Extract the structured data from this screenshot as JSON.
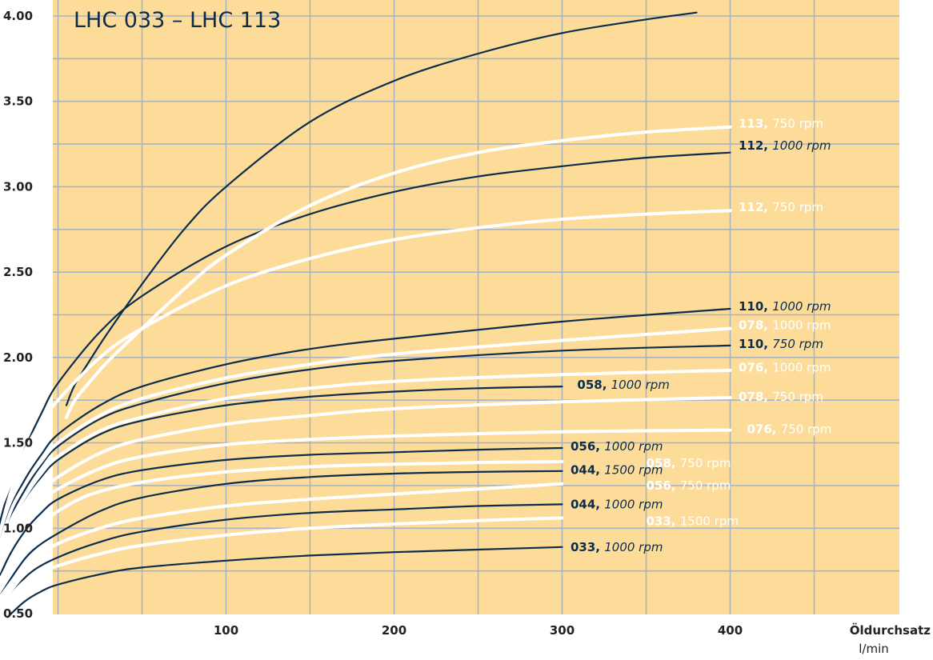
{
  "chart_data": {
    "type": "line",
    "title": "LHC 033 – LHC 113",
    "xlabel": "Öldurchsatz",
    "xunit": "l/min",
    "xlim": [
      -48,
      400
    ],
    "ylim": [
      0.5,
      4.0
    ],
    "xticks": [
      100,
      200,
      300,
      400
    ],
    "yticks": [
      0.5,
      1.0,
      1.5,
      2.0,
      2.5,
      3.0,
      3.5,
      4.0
    ],
    "ytick_labels": [
      "0.50",
      "1.00",
      "1.50",
      "2.00",
      "2.50",
      "3.00",
      "3.50",
      "4.00"
    ],
    "grid": true,
    "background": "#fddc9a",
    "colors": {
      "navy": "#0b2c4a",
      "white": "#ffffff",
      "grid": "#a9b4c0"
    },
    "series": [
      {
        "model": "033",
        "speed": "1000 rpm",
        "color": "navy",
        "x": [
          -30,
          -20,
          -10,
          0,
          25,
          50,
          100,
          150,
          200,
          250,
          300
        ],
        "y": [
          0.48,
          0.57,
          0.63,
          0.67,
          0.73,
          0.77,
          0.81,
          0.84,
          0.86,
          0.875,
          0.89
        ]
      },
      {
        "model": "033",
        "speed": "1500 rpm",
        "color": "white",
        "x": [
          -35,
          -25,
          -15,
          0,
          25,
          50,
          100,
          150,
          200,
          250,
          300
        ],
        "y": [
          0.5,
          0.64,
          0.72,
          0.78,
          0.85,
          0.9,
          0.96,
          1.0,
          1.025,
          1.045,
          1.06
        ]
      },
      {
        "model": "044",
        "speed": "1000 rpm",
        "color": "navy",
        "x": [
          -35,
          -25,
          -15,
          0,
          25,
          50,
          100,
          150,
          200,
          250,
          300
        ],
        "y": [
          0.5,
          0.65,
          0.75,
          0.83,
          0.92,
          0.98,
          1.05,
          1.09,
          1.11,
          1.13,
          1.14
        ]
      },
      {
        "model": "056",
        "speed": "750 rpm",
        "color": "white",
        "x": [
          -38,
          -25,
          -15,
          0,
          25,
          50,
          100,
          150,
          200,
          250,
          300
        ],
        "y": [
          0.55,
          0.72,
          0.82,
          0.91,
          1.0,
          1.06,
          1.13,
          1.17,
          1.2,
          1.23,
          1.26
        ]
      },
      {
        "model": "044",
        "speed": "1500 rpm",
        "color": "navy",
        "x": [
          -38,
          -25,
          -15,
          0,
          25,
          50,
          100,
          150,
          200,
          250,
          300
        ],
        "y": [
          0.55,
          0.75,
          0.87,
          0.97,
          1.1,
          1.18,
          1.26,
          1.3,
          1.32,
          1.33,
          1.335
        ]
      },
      {
        "model": "058",
        "speed": "750 rpm",
        "color": "white",
        "x": [
          -42,
          -30,
          -20,
          -10,
          0,
          20,
          50,
          100,
          150,
          200,
          250,
          300
        ],
        "y": [
          0.55,
          0.78,
          0.92,
          1.02,
          1.1,
          1.2,
          1.27,
          1.33,
          1.36,
          1.375,
          1.385,
          1.39
        ]
      },
      {
        "model": "056",
        "speed": "1000 rpm",
        "color": "navy",
        "x": [
          -42,
          -30,
          -20,
          -10,
          0,
          25,
          50,
          100,
          150,
          200,
          250,
          300
        ],
        "y": [
          0.55,
          0.82,
          0.98,
          1.09,
          1.17,
          1.28,
          1.34,
          1.4,
          1.43,
          1.445,
          1.46,
          1.47
        ]
      },
      {
        "model": "076",
        "speed": "750 rpm",
        "color": "white",
        "x": [
          -45,
          -30,
          -20,
          -10,
          0,
          25,
          50,
          100,
          150,
          200,
          300,
          400
        ],
        "y": [
          0.55,
          0.92,
          1.06,
          1.16,
          1.23,
          1.35,
          1.42,
          1.49,
          1.52,
          1.54,
          1.565,
          1.575
        ]
      },
      {
        "model": "078",
        "speed": "750 rpm",
        "color": "white",
        "x": [
          -45,
          -30,
          -20,
          -10,
          0,
          25,
          50,
          100,
          150,
          200,
          300,
          400
        ],
        "y": [
          0.55,
          0.95,
          1.1,
          1.21,
          1.3,
          1.44,
          1.52,
          1.61,
          1.66,
          1.7,
          1.74,
          1.765
        ]
      },
      {
        "model": "058",
        "speed": "1000 rpm",
        "color": "navy",
        "x": [
          -45,
          -30,
          -20,
          -10,
          0,
          25,
          50,
          100,
          150,
          200,
          250,
          300
        ],
        "y": [
          0.55,
          1.0,
          1.17,
          1.3,
          1.4,
          1.55,
          1.63,
          1.72,
          1.77,
          1.8,
          1.82,
          1.83
        ]
      },
      {
        "model": "076",
        "speed": "1000 rpm",
        "color": "white",
        "x": [
          -45,
          -30,
          -20,
          -10,
          0,
          25,
          50,
          100,
          150,
          200,
          300,
          400
        ],
        "y": [
          0.55,
          1.0,
          1.18,
          1.32,
          1.42,
          1.57,
          1.65,
          1.76,
          1.82,
          1.86,
          1.9,
          1.925
        ]
      },
      {
        "model": "110",
        "speed": "750 rpm",
        "color": "navy",
        "x": [
          -45,
          -30,
          -20,
          -10,
          0,
          25,
          50,
          100,
          150,
          200,
          300,
          400
        ],
        "y": [
          0.55,
          1.02,
          1.22,
          1.37,
          1.48,
          1.64,
          1.73,
          1.85,
          1.93,
          1.98,
          2.04,
          2.07
        ]
      },
      {
        "model": "078",
        "speed": "1000 rpm",
        "color": "white",
        "x": [
          -45,
          -30,
          -20,
          -10,
          0,
          25,
          50,
          100,
          150,
          200,
          300,
          400
        ],
        "y": [
          0.55,
          1.05,
          1.25,
          1.39,
          1.5,
          1.66,
          1.76,
          1.88,
          1.96,
          2.02,
          2.1,
          2.17
        ]
      },
      {
        "model": "110",
        "speed": "1000 rpm",
        "color": "navy",
        "x": [
          -45,
          -30,
          -20,
          -10,
          0,
          25,
          50,
          100,
          150,
          200,
          300,
          400
        ],
        "y": [
          0.55,
          1.07,
          1.28,
          1.43,
          1.55,
          1.72,
          1.83,
          1.96,
          2.05,
          2.11,
          2.21,
          2.285
        ]
      },
      {
        "model": "112",
        "speed": "750 rpm",
        "color": "white",
        "x": [
          -48,
          -40,
          -30,
          -20,
          -10,
          0,
          25,
          50,
          100,
          150,
          200,
          250,
          300,
          350,
          400
        ],
        "y": [
          0.55,
          0.95,
          1.22,
          1.45,
          1.62,
          1.75,
          2.0,
          2.17,
          2.42,
          2.58,
          2.69,
          2.76,
          2.81,
          2.84,
          2.86
        ]
      },
      {
        "model": "112",
        "speed": "1000 rpm",
        "color": "navy",
        "x": [
          -45,
          -40,
          -30,
          -20,
          -10,
          0,
          25,
          50,
          100,
          150,
          200,
          250,
          300,
          350,
          400
        ],
        "y": [
          0.45,
          0.8,
          1.2,
          1.46,
          1.67,
          1.85,
          2.15,
          2.36,
          2.65,
          2.84,
          2.97,
          3.06,
          3.12,
          3.17,
          3.2
        ]
      },
      {
        "model": "113",
        "speed": "750 rpm",
        "color": "white",
        "x": [
          5,
          10,
          20,
          30,
          50,
          75,
          100,
          150,
          200,
          250,
          300,
          350,
          400
        ],
        "y": [
          1.65,
          1.75,
          1.87,
          1.98,
          2.17,
          2.4,
          2.6,
          2.89,
          3.08,
          3.2,
          3.27,
          3.32,
          3.35
        ]
      },
      {
        "model": "113",
        "speed": "1000 rpm",
        "color": "navy",
        "x": [
          5,
          10,
          20,
          30,
          50,
          75,
          100,
          150,
          200,
          250,
          300,
          350,
          380
        ],
        "y": [
          1.72,
          1.84,
          2.0,
          2.15,
          2.43,
          2.75,
          3.0,
          3.38,
          3.62,
          3.78,
          3.9,
          3.98,
          4.02
        ]
      }
    ],
    "labels": [
      {
        "model": "113,",
        "speed": "750 rpm",
        "color": "white",
        "italic": false,
        "x": 405,
        "y": 3.37
      },
      {
        "model": "112,",
        "speed": "1000 rpm",
        "color": "navy",
        "italic": true,
        "x": 405,
        "y": 3.24
      },
      {
        "model": "112,",
        "speed": "750 rpm",
        "color": "white",
        "italic": false,
        "x": 405,
        "y": 2.88
      },
      {
        "model": "110,",
        "speed": "1000 rpm",
        "color": "navy",
        "italic": true,
        "x": 405,
        "y": 2.3
      },
      {
        "model": "078,",
        "speed": "1000 rpm",
        "color": "white",
        "italic": false,
        "x": 405,
        "y": 2.19
      },
      {
        "model": "110,",
        "speed": "750 rpm",
        "color": "navy",
        "italic": true,
        "x": 405,
        "y": 2.08
      },
      {
        "model": "076,",
        "speed": "1000 rpm",
        "color": "white",
        "italic": false,
        "x": 405,
        "y": 1.94
      },
      {
        "model": "058,",
        "speed": "1000 rpm",
        "color": "navy",
        "italic": true,
        "x": 309,
        "y": 1.84
      },
      {
        "model": "078,",
        "speed": "750 rpm",
        "color": "white",
        "italic": false,
        "x": 405,
        "y": 1.77
      },
      {
        "model": "076,",
        "speed": "750 rpm",
        "color": "white",
        "italic": false,
        "x": 410,
        "y": 1.58
      },
      {
        "model": "056,",
        "speed": "1000 rpm",
        "color": "navy",
        "italic": true,
        "x": 305,
        "y": 1.48
      },
      {
        "model": "058,",
        "speed": "750 rpm",
        "color": "white",
        "italic": false,
        "x": 350,
        "y": 1.38
      },
      {
        "model": "044,",
        "speed": "1500 rpm",
        "color": "navy",
        "italic": true,
        "x": 305,
        "y": 1.34
      },
      {
        "model": "056,",
        "speed": "750 rpm",
        "color": "white",
        "italic": false,
        "x": 350,
        "y": 1.25
      },
      {
        "model": "044,",
        "speed": "1000 rpm",
        "color": "navy",
        "italic": true,
        "x": 305,
        "y": 1.14
      },
      {
        "model": "033,",
        "speed": "1500 rpm",
        "color": "white",
        "italic": false,
        "x": 350,
        "y": 1.04
      },
      {
        "model": "033,",
        "speed": "1000 rpm",
        "color": "navy",
        "italic": true,
        "x": 305,
        "y": 0.89
      }
    ]
  }
}
